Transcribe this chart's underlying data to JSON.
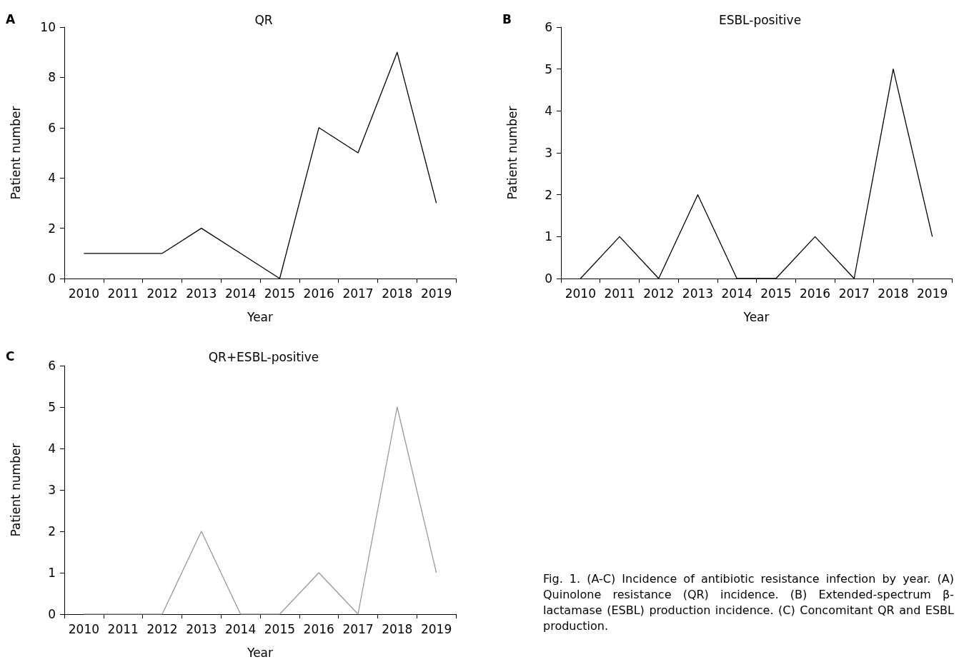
{
  "chart_data": [
    {
      "type": "line",
      "title": "QR",
      "xlabel": "Year",
      "ylabel": "Patient number",
      "annotations": [
        "A"
      ],
      "categories": [
        "2010",
        "2011",
        "2012",
        "2013",
        "2014",
        "2015",
        "2016",
        "2017",
        "2018",
        "2019"
      ],
      "series": [
        {
          "color": "#000000",
          "values": [
            1,
            1,
            1,
            2,
            1,
            0,
            6,
            5,
            9,
            3
          ]
        }
      ],
      "ylim": [
        0,
        10
      ],
      "yticks": [
        0,
        2,
        4,
        6,
        8,
        10
      ],
      "marker": "none",
      "line_style": "solid"
    },
    {
      "type": "line",
      "title": "ESBL-positive",
      "xlabel": "Year",
      "ylabel": "Patient number",
      "annotations": [
        "B"
      ],
      "categories": [
        "2010",
        "2011",
        "2012",
        "2013",
        "2014",
        "2015",
        "2016",
        "2017",
        "2018",
        "2019"
      ],
      "series": [
        {
          "color": "#000000",
          "values": [
            0,
            1,
            0,
            2,
            0,
            0,
            1,
            0,
            5,
            1
          ]
        }
      ],
      "ylim": [
        0,
        6
      ],
      "yticks": [
        0,
        1,
        2,
        3,
        4,
        5,
        6
      ],
      "marker": "none",
      "line_style": "solid"
    },
    {
      "type": "line",
      "title": "QR+ESBL-positive",
      "xlabel": "Year",
      "ylabel": "Patient number",
      "annotations": [
        "C"
      ],
      "categories": [
        "2010",
        "2011",
        "2012",
        "2013",
        "2014",
        "2015",
        "2016",
        "2017",
        "2018",
        "2019"
      ],
      "series": [
        {
          "color": "#999999",
          "values": [
            0,
            0,
            0,
            2,
            0,
            0,
            1,
            0,
            5,
            1
          ]
        }
      ],
      "ylim": [
        0,
        6
      ],
      "yticks": [
        0,
        1,
        2,
        3,
        4,
        5,
        6
      ],
      "marker": "none",
      "line_style": "solid"
    },
    {
      "type": "other",
      "annotations": [
        "Fig. 1. (A-C) Incidence of antibiotic resistance infection by year. (A) Quinolone resistance (QR) incidence. (B) Extended-spectrum β-lactamase (ESBL) production incidence. (C) Concomitant QR and ESBL production."
      ]
    }
  ]
}
